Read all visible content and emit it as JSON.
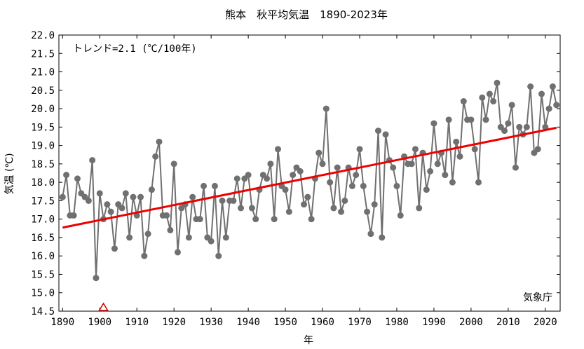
{
  "chart_data": {
    "type": "line",
    "title": "熊本　秋平均気温　1890-2023年",
    "xlabel": "年",
    "ylabel": "気温 (℃)",
    "xlim": [
      1889,
      2024
    ],
    "ylim": [
      14.5,
      22.0
    ],
    "x_ticks": [
      "1890",
      "1900",
      "1910",
      "1920",
      "1930",
      "1940",
      "1950",
      "1960",
      "1970",
      "1980",
      "1990",
      "2000",
      "2010",
      "2020"
    ],
    "y_ticks": [
      "14.5",
      "15.0",
      "15.5",
      "16.0",
      "16.5",
      "17.0",
      "17.5",
      "18.0",
      "18.5",
      "19.0",
      "19.5",
      "20.0",
      "20.5",
      "21.0",
      "21.5",
      "22.0"
    ],
    "grid": false,
    "trend_annotation": "トレンド=2.1 (℃/100年)",
    "source_label": "気象庁",
    "colors": {
      "series": "#707070",
      "trend": "#ee0000",
      "marker": "#cc0000"
    },
    "marker_year": 1901,
    "series": [
      {
        "x": [
          1890,
          1891,
          1892,
          1893,
          1894,
          1895,
          1896,
          1897,
          1898,
          1899,
          1900,
          1901,
          1902,
          1903,
          1904,
          1905,
          1906,
          1907,
          1908,
          1909,
          1910,
          1911,
          1912,
          1913,
          1914,
          1915,
          1916,
          1917,
          1918,
          1919,
          1920,
          1921,
          1922,
          1923,
          1924,
          1925,
          1926,
          1927,
          1928,
          1929,
          1930,
          1931,
          1932,
          1933,
          1934,
          1935,
          1936,
          1937,
          1938,
          1939,
          1940,
          1941,
          1942,
          1943,
          1944,
          1945,
          1946,
          1947,
          1948,
          1949,
          1950,
          1951,
          1952,
          1953,
          1954,
          1955,
          1956,
          1957,
          1958,
          1959,
          1960,
          1961,
          1962,
          1963,
          1964,
          1965,
          1966,
          1967,
          1968,
          1969,
          1970,
          1971,
          1972,
          1973,
          1974,
          1975,
          1976,
          1977,
          1978,
          1979,
          1980,
          1981,
          1982,
          1983,
          1984,
          1985,
          1986,
          1987,
          1988,
          1989,
          1990,
          1991,
          1992,
          1993,
          1994,
          1995,
          1996,
          1997,
          1998,
          1999,
          2000,
          2001,
          2002,
          2003,
          2004,
          2005,
          2006,
          2007,
          2008,
          2009,
          2010,
          2011,
          2012,
          2013,
          2014,
          2015,
          2016,
          2017,
          2018,
          2019,
          2020,
          2021,
          2022,
          2023
        ],
        "values": [
          17.6,
          18.2,
          17.1,
          17.1,
          18.1,
          17.7,
          17.6,
          17.5,
          18.6,
          15.4,
          17.7,
          17.0,
          17.4,
          17.2,
          16.2,
          17.4,
          17.3,
          17.7,
          16.5,
          17.6,
          17.1,
          17.6,
          16.0,
          16.6,
          17.8,
          18.7,
          19.1,
          17.1,
          17.1,
          16.7,
          18.5,
          16.1,
          17.3,
          17.4,
          16.5,
          17.6,
          17.0,
          17.0,
          17.9,
          16.5,
          16.4,
          17.9,
          16.0,
          17.5,
          16.5,
          17.5,
          17.5,
          18.1,
          17.3,
          18.1,
          18.2,
          17.3,
          17.0,
          17.8,
          18.2,
          18.1,
          18.5,
          17.0,
          18.9,
          17.9,
          17.8,
          17.2,
          18.2,
          18.4,
          18.3,
          17.4,
          17.6,
          17.0,
          18.1,
          18.8,
          18.5,
          20.0,
          18.0,
          17.3,
          18.4,
          17.2,
          17.5,
          18.4,
          17.9,
          18.2,
          18.9,
          17.9,
          17.2,
          16.6,
          17.4,
          19.4,
          16.5,
          19.3,
          18.6,
          18.4,
          17.9,
          17.1,
          18.7,
          18.5,
          18.5,
          18.9,
          17.3,
          18.8,
          17.8,
          18.3,
          19.6,
          18.5,
          18.8,
          18.2,
          19.7,
          18.0,
          19.1,
          18.7,
          20.2,
          19.7,
          19.7,
          18.9,
          18.0,
          20.3,
          19.7,
          20.4,
          20.2,
          20.7,
          19.5,
          19.4,
          19.6,
          20.1,
          18.4,
          19.5,
          19.3,
          19.5,
          20.6,
          18.8,
          18.9,
          20.4,
          19.5,
          20.0,
          20.6,
          20.1
        ]
      }
    ],
    "trend": {
      "x": [
        1890,
        2023
      ],
      "y": [
        16.77,
        19.48
      ]
    }
  }
}
